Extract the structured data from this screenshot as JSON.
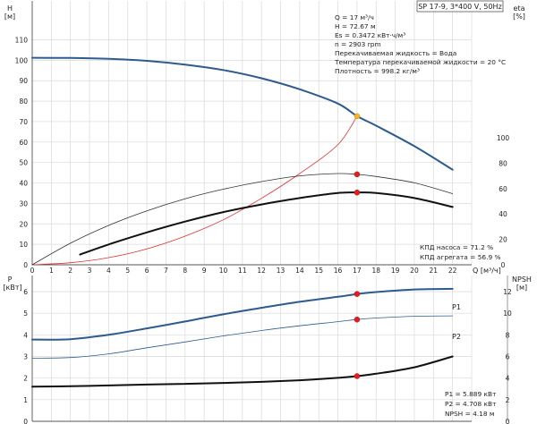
{
  "chart_data": [
    {
      "type": "line",
      "title": "SP 17-9, 3*400 V, 50Hz",
      "left_axis": {
        "label_line1": "H",
        "label_line2": "[м]",
        "ylim": [
          0,
          120
        ],
        "ticks": [
          0,
          10,
          20,
          30,
          40,
          50,
          60,
          70,
          80,
          90,
          100,
          110
        ]
      },
      "right_axis": {
        "label_line1": "eta",
        "label_line2": "[%]",
        "ylim": [
          0,
          120
        ],
        "ticks": [
          0,
          20,
          40,
          60,
          80,
          100
        ]
      },
      "x_axis": {
        "label": "Q [м³/ч]",
        "xlim": [
          0,
          23
        ],
        "ticks": [
          0,
          1,
          2,
          3,
          4,
          5,
          6,
          7,
          8,
          9,
          10,
          11,
          12,
          13,
          14,
          15,
          16,
          17,
          18,
          19,
          20,
          21,
          22
        ]
      },
      "series": [
        {
          "key": "H",
          "axis": "left",
          "color": "#2d5b8e",
          "width": 2,
          "points": [
            [
              0,
              101.2
            ],
            [
              2,
              101.1
            ],
            [
              4,
              100.7
            ],
            [
              6,
              99.7
            ],
            [
              8,
              97.9
            ],
            [
              10,
              95.2
            ],
            [
              12,
              91.2
            ],
            [
              14,
              85.8
            ],
            [
              16,
              78.8
            ],
            [
              17,
              72.67
            ],
            [
              18,
              68.0
            ],
            [
              20,
              58.0
            ],
            [
              22,
              46.5
            ]
          ]
        },
        {
          "key": "system",
          "axis": "left",
          "color": "#e03030",
          "width": 0.8,
          "points": [
            [
              0,
              0
            ],
            [
              2,
              1
            ],
            [
              4,
              3.5
            ],
            [
              6,
              7.8
            ],
            [
              8,
              14
            ],
            [
              10,
              22
            ],
            [
              12,
              32.5
            ],
            [
              14,
              44.6
            ],
            [
              16,
              58.8
            ],
            [
              17,
              72.67
            ]
          ]
        },
        {
          "key": "eta_pump",
          "axis": "right",
          "color": "#333333",
          "width": 0.8,
          "points": [
            [
              0,
              0
            ],
            [
              2,
              17
            ],
            [
              4,
              31
            ],
            [
              6,
              42.5
            ],
            [
              8,
              52
            ],
            [
              10,
              59.5
            ],
            [
              12,
              65.5
            ],
            [
              14,
              70
            ],
            [
              16,
              71.8
            ],
            [
              17,
              71.2
            ],
            [
              18,
              69.5
            ],
            [
              20,
              64.5
            ],
            [
              22,
              56
            ]
          ]
        },
        {
          "key": "eta_unit",
          "axis": "right",
          "color": "#111111",
          "width": 2,
          "points": [
            [
              2.5,
              8
            ],
            [
              4,
              16
            ],
            [
              6,
              25.5
            ],
            [
              8,
              34
            ],
            [
              10,
              41.5
            ],
            [
              12,
              47.5
            ],
            [
              14,
              52.5
            ],
            [
              16,
              56.5
            ],
            [
              17,
              56.9
            ],
            [
              18,
              56.5
            ],
            [
              20,
              52.5
            ],
            [
              22,
              45.5
            ]
          ]
        }
      ],
      "markers": [
        {
          "axis": "left",
          "x": 17,
          "y": 72.67,
          "color": "#f2b51e"
        },
        {
          "axis": "right",
          "x": 17,
          "y": 71.2,
          "color": "#e02020"
        },
        {
          "axis": "right",
          "x": 17,
          "y": 56.9,
          "color": "#e02020"
        }
      ],
      "info_lines": [
        "Q = 17 м³/ч",
        "H = 72.67 м",
        "Es = 0.3472 кВт·ч/м³",
        "n = 2903 rpm",
        "Перекачиваемая жидкость = Вода",
        "Температура перекачиваемой жидкости = 20 °C",
        "Плотность = 998.2 кг/м³"
      ],
      "eff_lines": [
        "КПД насоса = 71.2 %",
        "КПД агрегата = 56.9 %"
      ]
    },
    {
      "type": "line",
      "left_axis": {
        "label_line1": "P",
        "label_line2": "[кВт]",
        "ylim": [
          0,
          7
        ],
        "ticks": [
          0,
          1,
          2,
          3,
          4,
          5,
          6
        ]
      },
      "right_axis": {
        "label_line1": "NPSH",
        "label_line2": "[м]",
        "ylim": [
          0,
          14
        ],
        "ticks": [
          0,
          2,
          4,
          6,
          8,
          10,
          12
        ]
      },
      "x_axis": {
        "xlim": [
          0,
          23
        ]
      },
      "series": [
        {
          "key": "P1",
          "name": "P1",
          "axis": "left",
          "color": "#2d5b8e",
          "width": 2,
          "points": [
            [
              0,
              3.78
            ],
            [
              2,
              3.8
            ],
            [
              4,
              4.0
            ],
            [
              6,
              4.3
            ],
            [
              8,
              4.62
            ],
            [
              10,
              4.95
            ],
            [
              12,
              5.25
            ],
            [
              14,
              5.53
            ],
            [
              16,
              5.76
            ],
            [
              17,
              5.889
            ],
            [
              18,
              5.98
            ],
            [
              20,
              6.1
            ],
            [
              22,
              6.13
            ]
          ]
        },
        {
          "key": "P2",
          "name": "P2",
          "axis": "left",
          "color": "#2d5b8e",
          "width": 0.8,
          "points": [
            [
              0,
              2.92
            ],
            [
              2,
              2.95
            ],
            [
              4,
              3.12
            ],
            [
              6,
              3.4
            ],
            [
              8,
              3.67
            ],
            [
              10,
              3.95
            ],
            [
              12,
              4.2
            ],
            [
              14,
              4.42
            ],
            [
              16,
              4.61
            ],
            [
              17,
              4.708
            ],
            [
              18,
              4.78
            ],
            [
              20,
              4.86
            ],
            [
              22,
              4.88
            ]
          ]
        },
        {
          "key": "NPSH",
          "axis": "right",
          "color": "#111111",
          "width": 2,
          "points": [
            [
              0,
              3.2
            ],
            [
              2,
              3.25
            ],
            [
              4,
              3.32
            ],
            [
              6,
              3.4
            ],
            [
              8,
              3.47
            ],
            [
              10,
              3.55
            ],
            [
              12,
              3.65
            ],
            [
              14,
              3.8
            ],
            [
              16,
              4.02
            ],
            [
              17,
              4.18
            ],
            [
              18,
              4.4
            ],
            [
              20,
              5.0
            ],
            [
              22,
              6.0
            ]
          ]
        }
      ],
      "markers": [
        {
          "axis": "left",
          "x": 17,
          "y": 5.889,
          "color": "#e02020"
        },
        {
          "axis": "left",
          "x": 17,
          "y": 4.708,
          "color": "#e02020"
        },
        {
          "axis": "right",
          "x": 17,
          "y": 4.18,
          "color": "#e02020"
        }
      ],
      "info_lines": [
        "P1 = 5.889 кВт",
        "P2 = 4.708 кВт",
        "NPSH = 4.18 м"
      ]
    }
  ],
  "colors": {
    "grid": "#d9d9d9",
    "axis": "#555555",
    "blue": "#2d5b8e",
    "red": "#e02020",
    "orange": "#f2b51e"
  }
}
